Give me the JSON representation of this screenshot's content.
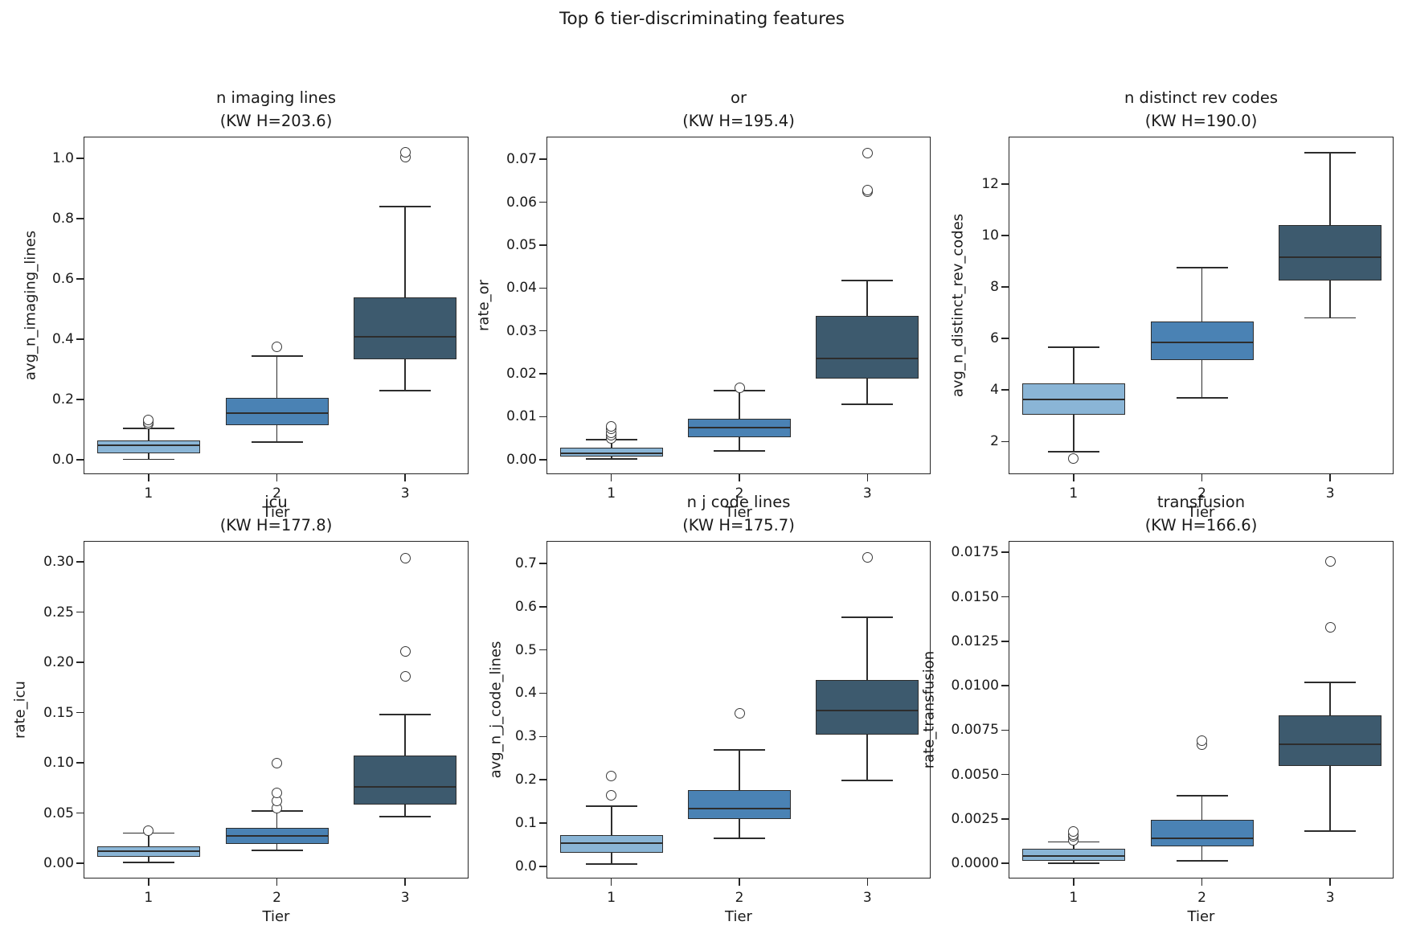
{
  "title": "Top 6 tier-discriminating features",
  "colors": {
    "tier1_fill": "#8ab5d6",
    "tier2_fill": "#4a82b4",
    "tier3_fill": "#3d5a6e",
    "line": "#2d2d2d",
    "text": "#1a1a1a",
    "background": "#ffffff"
  },
  "chart_data": [
    {
      "type": "box",
      "title": "n imaging lines",
      "subtitle": "(KW H=203.6)",
      "xlabel": "Tier",
      "ylabel": "avg_n_imaging_lines",
      "categories": [
        "1",
        "2",
        "3"
      ],
      "ylim": [
        -0.05,
        1.07
      ],
      "yticks": [
        0.0,
        0.2,
        0.4,
        0.6,
        0.8,
        1.0
      ],
      "ytick_labels": [
        "0.0",
        "0.2",
        "0.4",
        "0.6",
        "0.8",
        "1.0"
      ],
      "boxes": [
        {
          "category": "1",
          "whislo": 0.002,
          "q1": 0.022,
          "med": 0.048,
          "q3": 0.065,
          "whishi": 0.105,
          "outliers": [
            0.12,
            0.125,
            0.132
          ]
        },
        {
          "category": "2",
          "whislo": 0.06,
          "q1": 0.115,
          "med": 0.155,
          "q3": 0.207,
          "whishi": 0.345,
          "outliers": [
            0.375
          ]
        },
        {
          "category": "3",
          "whislo": 0.23,
          "q1": 0.335,
          "med": 0.41,
          "q3": 0.54,
          "whishi": 0.84,
          "outliers": [
            1.005,
            1.02
          ]
        }
      ]
    },
    {
      "type": "box",
      "title": "or",
      "subtitle": "(KW H=195.4)",
      "xlabel": "Tier",
      "ylabel": "rate_or",
      "categories": [
        "1",
        "2",
        "3"
      ],
      "ylim": [
        -0.0036,
        0.0751
      ],
      "yticks": [
        0.0,
        0.01,
        0.02,
        0.03,
        0.04,
        0.05,
        0.06,
        0.07
      ],
      "ytick_labels": [
        "0.00",
        "0.01",
        "0.02",
        "0.03",
        "0.04",
        "0.05",
        "0.06",
        "0.07"
      ],
      "boxes": [
        {
          "category": "1",
          "whislo": 0.0002,
          "q1": 0.0008,
          "med": 0.0015,
          "q3": 0.0027,
          "whishi": 0.0047,
          "outliers": [
            0.005,
            0.0056,
            0.0063,
            0.0072,
            0.0078
          ]
        },
        {
          "category": "2",
          "whislo": 0.002,
          "q1": 0.0052,
          "med": 0.0075,
          "q3": 0.0095,
          "whishi": 0.0161,
          "outliers": [
            0.0168
          ]
        },
        {
          "category": "3",
          "whislo": 0.0129,
          "q1": 0.0189,
          "med": 0.0236,
          "q3": 0.0335,
          "whishi": 0.0417,
          "outliers": [
            0.0624,
            0.0628,
            0.0714
          ]
        }
      ]
    },
    {
      "type": "box",
      "title": "n distinct rev codes",
      "subtitle": "(KW H=190.0)",
      "xlabel": "Tier",
      "ylabel": "avg_n_distinct_rev_codes",
      "categories": [
        "1",
        "2",
        "3"
      ],
      "ylim": [
        0.7,
        13.8
      ],
      "yticks": [
        2,
        4,
        6,
        8,
        10,
        12
      ],
      "ytick_labels": [
        "2",
        "4",
        "6",
        "8",
        "10",
        "12"
      ],
      "boxes": [
        {
          "category": "1",
          "whislo": 1.6,
          "q1": 3.05,
          "med": 3.62,
          "q3": 4.25,
          "whishi": 5.65,
          "outliers": [
            1.35
          ]
        },
        {
          "category": "2",
          "whislo": 3.7,
          "q1": 5.15,
          "med": 5.85,
          "q3": 6.65,
          "whishi": 8.75,
          "outliers": []
        },
        {
          "category": "3",
          "whislo": 6.8,
          "q1": 8.25,
          "med": 9.15,
          "q3": 10.4,
          "whishi": 13.2,
          "outliers": []
        }
      ]
    },
    {
      "type": "box",
      "title": "icu",
      "subtitle": "(KW H=177.8)",
      "xlabel": "Tier",
      "ylabel": "rate_icu",
      "categories": [
        "1",
        "2",
        "3"
      ],
      "ylim": [
        -0.016,
        0.32
      ],
      "yticks": [
        0.0,
        0.05,
        0.1,
        0.15,
        0.2,
        0.25,
        0.3
      ],
      "ytick_labels": [
        "0.00",
        "0.05",
        "0.10",
        "0.15",
        "0.20",
        "0.25",
        "0.30"
      ],
      "boxes": [
        {
          "category": "1",
          "whislo": 0.001,
          "q1": 0.0067,
          "med": 0.012,
          "q3": 0.0169,
          "whishi": 0.03,
          "outliers": [
            0.0326
          ]
        },
        {
          "category": "2",
          "whislo": 0.013,
          "q1": 0.0193,
          "med": 0.0271,
          "q3": 0.035,
          "whishi": 0.0522,
          "outliers": [
            0.0546,
            0.0617,
            0.0703,
            0.0994
          ]
        },
        {
          "category": "3",
          "whislo": 0.0467,
          "q1": 0.0585,
          "med": 0.0758,
          "q3": 0.107,
          "whishi": 0.148,
          "outliers": [
            0.186,
            0.211,
            0.3035
          ]
        }
      ]
    },
    {
      "type": "box",
      "title": "n j code lines",
      "subtitle": "(KW H=175.7)",
      "xlabel": "Tier",
      "ylabel": "avg_n_j_code_lines",
      "categories": [
        "1",
        "2",
        "3"
      ],
      "ylim": [
        -0.03,
        0.75
      ],
      "yticks": [
        0.0,
        0.1,
        0.2,
        0.3,
        0.4,
        0.5,
        0.6,
        0.7
      ],
      "ytick_labels": [
        "0.0",
        "0.1",
        "0.2",
        "0.3",
        "0.4",
        "0.5",
        "0.6",
        "0.7"
      ],
      "boxes": [
        {
          "category": "1",
          "whislo": 0.005,
          "q1": 0.031,
          "med": 0.053,
          "q3": 0.072,
          "whishi": 0.139,
          "outliers": [
            0.165,
            0.208
          ]
        },
        {
          "category": "2",
          "whislo": 0.065,
          "q1": 0.109,
          "med": 0.133,
          "q3": 0.176,
          "whishi": 0.269,
          "outliers": [
            0.353
          ]
        },
        {
          "category": "3",
          "whislo": 0.198,
          "q1": 0.304,
          "med": 0.36,
          "q3": 0.43,
          "whishi": 0.575,
          "outliers": [
            0.713
          ]
        }
      ]
    },
    {
      "type": "box",
      "title": "transfusion",
      "subtitle": "(KW H=166.6)",
      "xlabel": "Tier",
      "ylabel": "rate_transfusion",
      "categories": [
        "1",
        "2",
        "3"
      ],
      "ylim": [
        -0.0009,
        0.0181
      ],
      "yticks": [
        0.0,
        0.0025,
        0.005,
        0.0075,
        0.01,
        0.0125,
        0.015,
        0.0175
      ],
      "ytick_labels": [
        "0.0000",
        "0.0025",
        "0.0050",
        "0.0075",
        "0.0100",
        "0.0125",
        "0.0150",
        "0.0175"
      ],
      "boxes": [
        {
          "category": "1",
          "whislo": 0.0,
          "q1": 0.00015,
          "med": 0.0004,
          "q3": 0.0008,
          "whishi": 0.0012,
          "outliers": [
            0.0013,
            0.0015,
            0.0016,
            0.0018
          ]
        },
        {
          "category": "2",
          "whislo": 0.00015,
          "q1": 0.00095,
          "med": 0.0014,
          "q3": 0.00245,
          "whishi": 0.0038,
          "outliers": [
            0.0067,
            0.0069
          ]
        },
        {
          "category": "3",
          "whislo": 0.0018,
          "q1": 0.00546,
          "med": 0.0067,
          "q3": 0.00834,
          "whishi": 0.0102,
          "outliers": [
            0.0133,
            0.017
          ]
        }
      ]
    }
  ]
}
